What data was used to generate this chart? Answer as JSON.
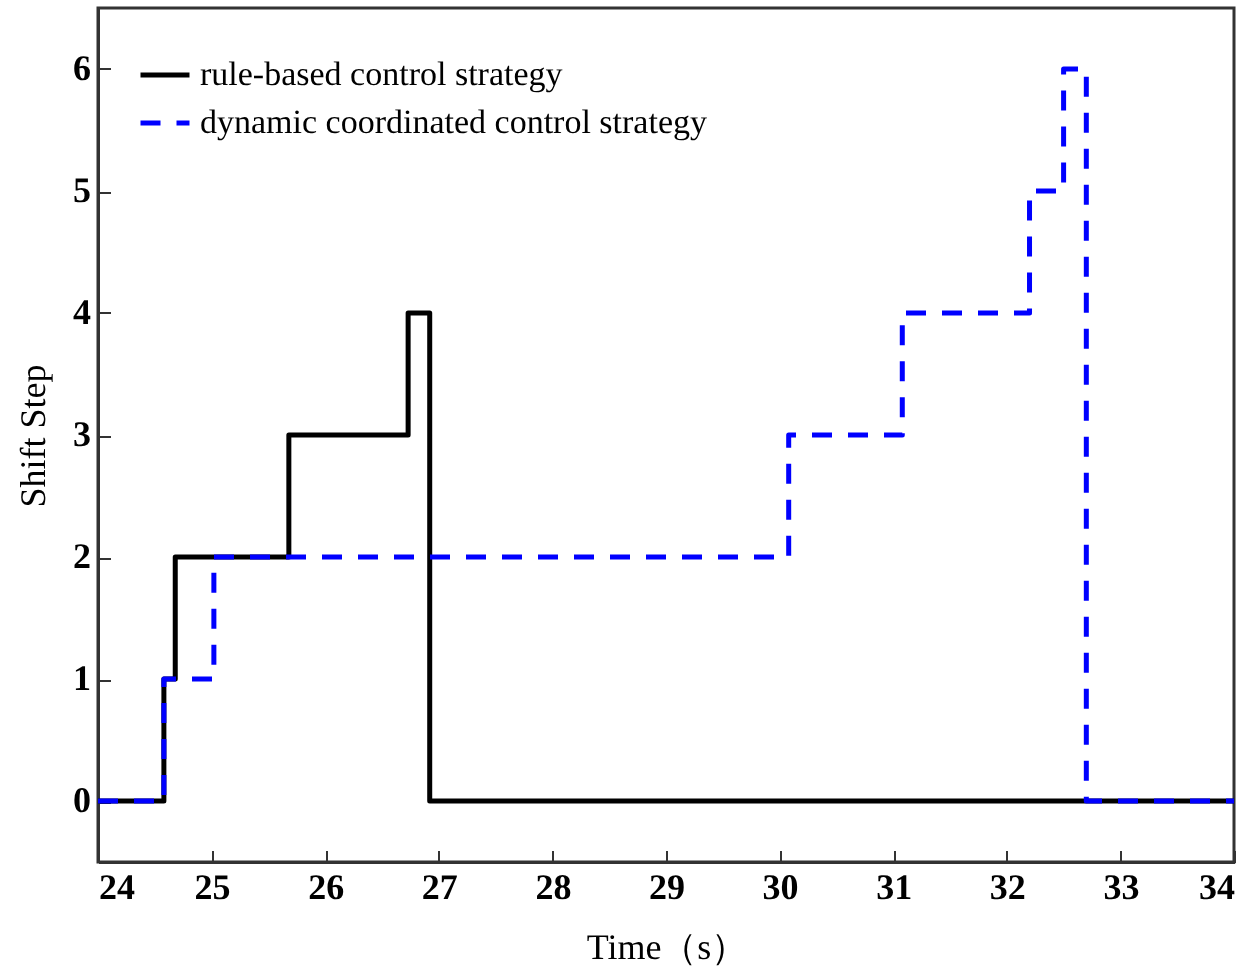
{
  "chart_data": {
    "type": "step",
    "xlabel": "Time（s）",
    "ylabel": "Shift Step",
    "xlim": [
      24,
      34
    ],
    "ylim": [
      -0.5,
      6.5
    ],
    "xticks": [
      24,
      25,
      26,
      27,
      28,
      29,
      30,
      31,
      32,
      33,
      34
    ],
    "yticks": [
      0,
      1,
      2,
      3,
      4,
      5,
      6
    ],
    "grid": false,
    "legend": "top left",
    "series": [
      {
        "name": "rule-based control strategy",
        "color": "#000000",
        "line_style": "solid",
        "x": [
          24,
          24.58,
          24.68,
          25.68,
          26.73,
          26.92,
          34
        ],
        "values": [
          0,
          1,
          2,
          3,
          4,
          0,
          0
        ]
      },
      {
        "name": "dynamic coordinated control strategy",
        "color": "#0000ff",
        "line_style": "dashed",
        "x": [
          24,
          24.58,
          25.02,
          30.08,
          31.08,
          32.2,
          32.5,
          32.7,
          34
        ],
        "values": [
          0,
          1,
          2,
          3,
          4,
          5,
          6,
          0,
          0
        ]
      }
    ]
  }
}
